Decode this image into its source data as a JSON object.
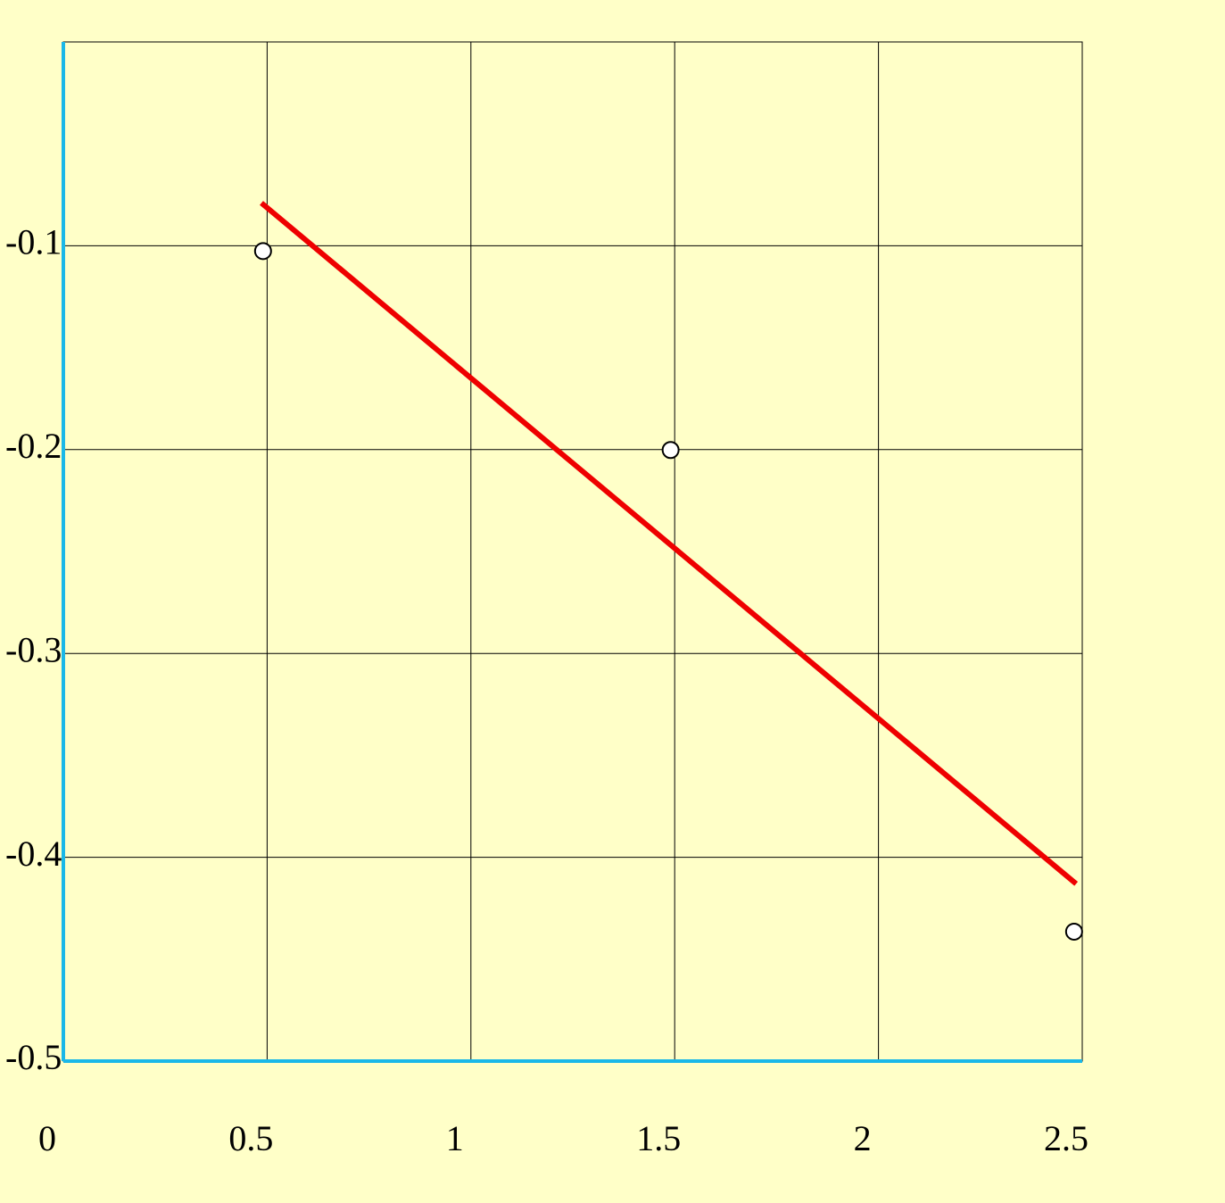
{
  "chart_data": {
    "type": "scatter",
    "xlim": [
      0,
      2.5
    ],
    "ylim": [
      -0.5,
      0
    ],
    "xticks": [
      0,
      0.5,
      1,
      1.5,
      2,
      2.5
    ],
    "yticks": [
      -0.5,
      -0.4,
      -0.3,
      -0.2,
      -0.1
    ],
    "grid": true,
    "series": [
      {
        "type": "scatter",
        "color": "#ffffff",
        "x": [
          0.49,
          1.49,
          2.48
        ],
        "values": [
          -0.1026,
          -0.2002,
          -0.4365
        ]
      },
      {
        "type": "line",
        "color": "#ee0000",
        "x": [
          0.486,
          2.485
        ],
        "values": [
          -0.079,
          -0.413
        ]
      }
    ]
  }
}
